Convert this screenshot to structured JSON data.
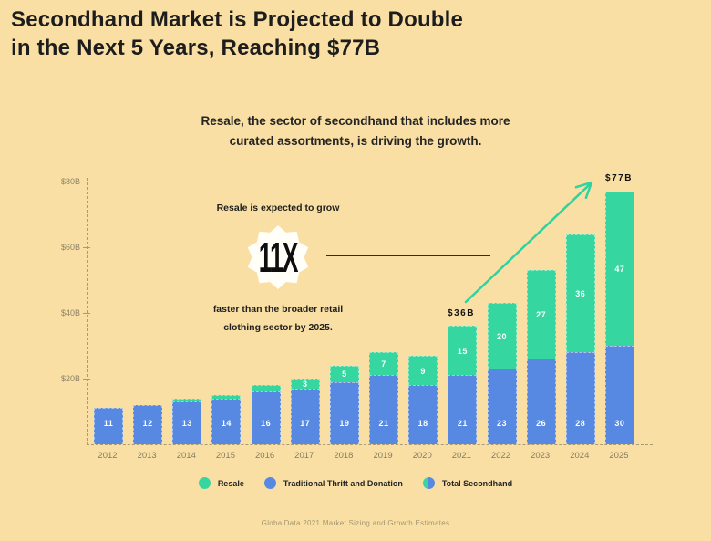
{
  "title": {
    "line1": "Secondhand Market is Projected to Double",
    "line2": "in the Next 5 Years, Reaching $77B"
  },
  "subtitle": {
    "line1": "Resale, the sector of secondhand that includes more",
    "line2": "curated assortments, is driving the growth."
  },
  "callout": {
    "intro": "Resale is expected to grow",
    "badge": "11X",
    "outro_line1": "faster than the broader retail",
    "outro_line2": "clothing sector by 2025."
  },
  "annotations": {
    "y2021": "$36B",
    "y2025": "$77B"
  },
  "legend": [
    {
      "label": "Resale",
      "swatch": "resale"
    },
    {
      "label": "Traditional Thrift and Donation",
      "swatch": "thrift"
    },
    {
      "label": "Total Secondhand",
      "swatch": "total"
    }
  ],
  "source": "GlobalData 2021 Market Sizing and Growth Estimates",
  "colors": {
    "background": "#FADFA4",
    "resale_green": "#36D6A0",
    "thrift_blue": "#5789E2",
    "text_dark": "#1D1D1D",
    "axis_gray": "#8D8268",
    "arrow_green": "#2ED3A0"
  },
  "chart_data": {
    "type": "bar",
    "stacked": true,
    "title": "Secondhand Market is Projected to Double in the Next 5 Years, Reaching $77B",
    "unit": "USD billions",
    "categories": [
      2012,
      2013,
      2014,
      2015,
      2016,
      2017,
      2018,
      2019,
      2020,
      2021,
      2022,
      2023,
      2024,
      2025
    ],
    "series": [
      {
        "name": "Traditional Thrift and Donation",
        "color": "#5789E2",
        "values": [
          11,
          12,
          13,
          14,
          16,
          17,
          19,
          21,
          18,
          21,
          23,
          26,
          28,
          30
        ]
      },
      {
        "name": "Resale",
        "color": "#36D6A0",
        "values": [
          0,
          0,
          1,
          1,
          2,
          3,
          5,
          7,
          9,
          15,
          20,
          27,
          36,
          47
        ]
      }
    ],
    "totals_annotated": [
      {
        "year": 2021,
        "label": "$36B",
        "total": 36
      },
      {
        "year": 2025,
        "label": "$77B",
        "total": 77
      }
    ],
    "yticks": [
      20,
      40,
      60,
      80
    ],
    "ytick_labels": [
      "$20B",
      "$40B",
      "$60B",
      "$80B"
    ],
    "ylim": [
      0,
      80
    ],
    "grid": false,
    "legend_position": "bottom",
    "label_min_value": 3
  }
}
